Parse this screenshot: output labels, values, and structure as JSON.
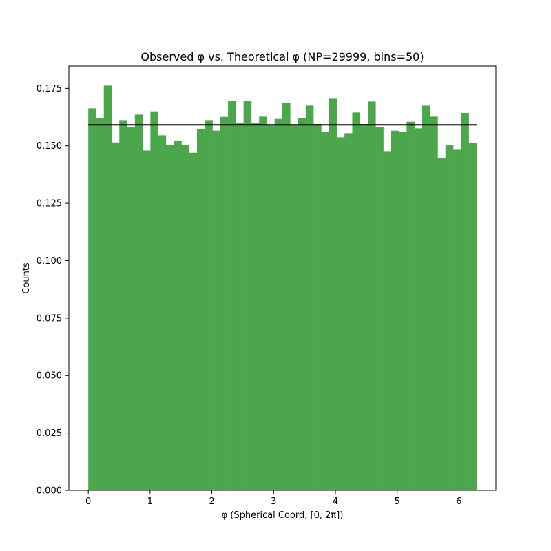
{
  "chart_data": {
    "type": "bar",
    "title": "Observed φ vs. Theoretical φ (NP=29999, bins=50)",
    "xlabel": "φ (Spherical Coord, [0, 2π])",
    "ylabel": "Counts",
    "xlim": [
      -0.314,
      6.597
    ],
    "ylim": [
      0,
      0.1847
    ],
    "bin_range": [
      0,
      6.2832
    ],
    "bins": 50,
    "bar_color": "#4ca64c",
    "line_color": "#000000",
    "grid": false,
    "xticks": [
      0,
      1,
      2,
      3,
      4,
      5,
      6
    ],
    "xtick_labels": [
      "0",
      "1",
      "2",
      "3",
      "4",
      "5",
      "6"
    ],
    "yticks": [
      0,
      0.025,
      0.05,
      0.075,
      0.1,
      0.125,
      0.15,
      0.175
    ],
    "ytick_labels": [
      "0.000",
      "0.025",
      "0.050",
      "0.075",
      "0.100",
      "0.125",
      "0.150",
      "0.175"
    ],
    "series": [
      {
        "type": "histogram",
        "values": [
          0.1663,
          0.1622,
          0.1762,
          0.1515,
          0.1612,
          0.158,
          0.1636,
          0.148,
          0.165,
          0.1546,
          0.1505,
          0.1522,
          0.1502,
          0.147,
          0.1573,
          0.1612,
          0.1566,
          0.1626,
          0.1697,
          0.16,
          0.1694,
          0.16,
          0.1627,
          0.159,
          0.1617,
          0.1687,
          0.159,
          0.162,
          0.1675,
          0.1595,
          0.156,
          0.1705,
          0.1537,
          0.1555,
          0.1645,
          0.1595,
          0.1693,
          0.1583,
          0.1477,
          0.1566,
          0.156,
          0.1605,
          0.1576,
          0.1675,
          0.1627,
          0.1447,
          0.1505,
          0.1483,
          0.1643,
          0.1512
        ]
      },
      {
        "type": "hline",
        "y": 0.15915,
        "x_range": [
          0,
          6.2832
        ]
      }
    ]
  }
}
